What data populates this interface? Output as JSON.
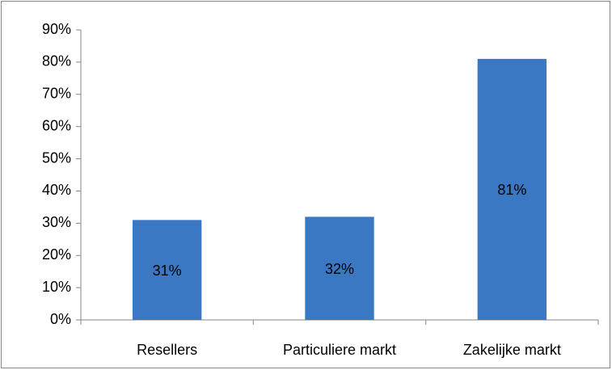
{
  "chart_data": {
    "type": "bar",
    "categories": [
      "Resellers",
      "Particuliere markt",
      "Zakelijke markt"
    ],
    "values": [
      31,
      32,
      81
    ],
    "value_labels": [
      "31%",
      "32%",
      "81%"
    ],
    "color": "#3a78c3",
    "ylim": [
      0,
      90
    ],
    "yticks": [
      {
        "value": 0,
        "label": "0%"
      },
      {
        "value": 10,
        "label": "10%"
      },
      {
        "value": 20,
        "label": "20%"
      },
      {
        "value": 30,
        "label": "30%"
      },
      {
        "value": 40,
        "label": "40%"
      },
      {
        "value": 50,
        "label": "50%"
      },
      {
        "value": 60,
        "label": "60%"
      },
      {
        "value": 70,
        "label": "70%"
      },
      {
        "value": 80,
        "label": "80%"
      },
      {
        "value": 90,
        "label": "90%"
      }
    ],
    "grid": false
  }
}
